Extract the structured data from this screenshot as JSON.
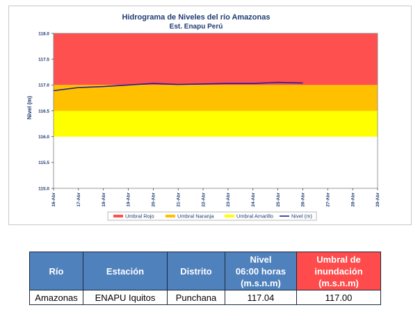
{
  "chart_data": {
    "type": "line",
    "title": "Hidrograma de Niveles del río Amazonas",
    "subtitle": "Est. Enapu Perú",
    "ylabel": "Nivel (m)",
    "ylim": [
      115.0,
      118.0
    ],
    "yticks": [
      "115.0",
      "115.5",
      "116.0",
      "116.5",
      "117.0",
      "117.5",
      "118.0"
    ],
    "categories": [
      "16-Abr",
      "17-Abr",
      "18-Abr",
      "19-Abr",
      "20-Abr",
      "21-Abr",
      "22-Abr",
      "23-Abr",
      "24-Abr",
      "25-Abr",
      "26-Abr",
      "27-Abr",
      "28-Abr",
      "29-Abr"
    ],
    "bands": [
      {
        "name": "Umbral Rojo",
        "from": 117.0,
        "to": 118.0,
        "color": "#ff5050"
      },
      {
        "name": "Umbral Naranja",
        "from": 116.5,
        "to": 117.0,
        "color": "#ffc000"
      },
      {
        "name": "Umbral Amarillo",
        "from": 116.0,
        "to": 116.5,
        "color": "#ffff00"
      }
    ],
    "series": [
      {
        "name": "Nivel (m)",
        "color": "#1f1f8f",
        "values": [
          116.89,
          116.95,
          116.97,
          117.0,
          117.03,
          117.01,
          117.02,
          117.03,
          117.03,
          117.05,
          117.04,
          null,
          null,
          null
        ]
      }
    ],
    "legend": [
      "Umbral Rojo",
      "Umbral Naranja",
      "Umbral Amarillo",
      "Nivel (m)"
    ],
    "legend_position": "bottom",
    "grid": false
  },
  "table": {
    "headers": [
      "Río",
      "Estación",
      "Distrito",
      "Nivel\n06:00 horas\n(m.s.n.m)",
      "Umbral de\ninundación\n(m.s.n.m)"
    ],
    "rows": [
      [
        "Amazonas",
        "ENAPU Iquitos",
        "Punchana",
        "117.04",
        "117.00"
      ]
    ]
  }
}
